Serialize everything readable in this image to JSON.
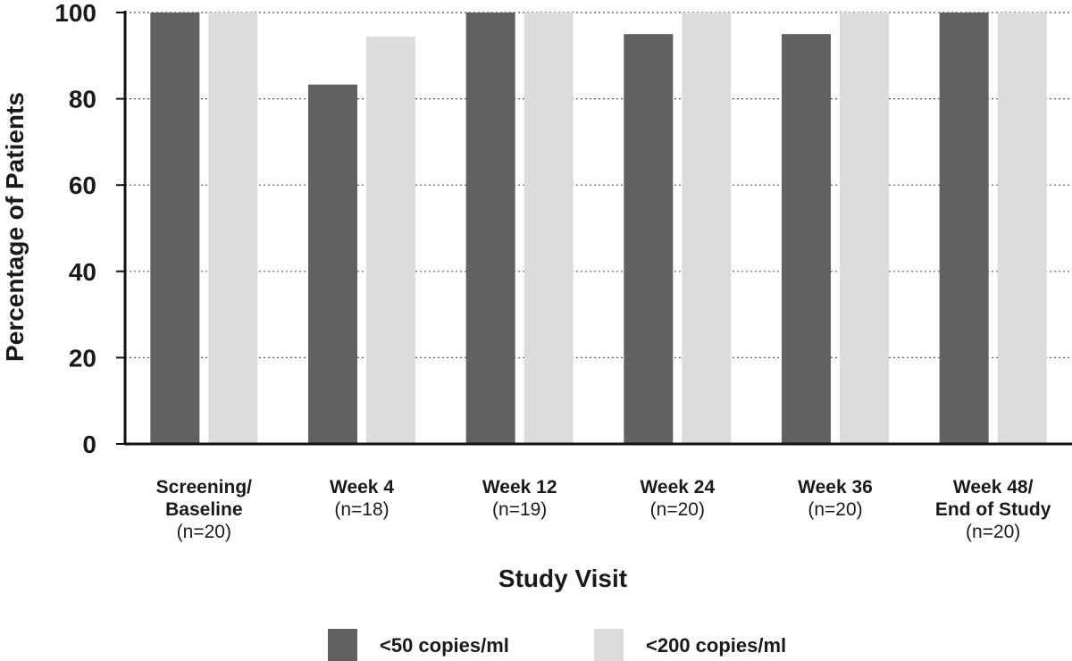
{
  "chart_data": {
    "type": "bar",
    "title": "",
    "xlabel": "Study Visit",
    "ylabel": "Percentage of Patients",
    "ylim": [
      0,
      100
    ],
    "yticks": [
      0,
      20,
      40,
      60,
      80,
      100
    ],
    "grid": "horizontal dotted",
    "legend_position": "bottom",
    "categories": [
      {
        "lines": [
          "Screening/",
          "Baseline"
        ],
        "n": "(n=20)"
      },
      {
        "lines": [
          "Week 4"
        ],
        "n": "(n=18)"
      },
      {
        "lines": [
          "Week 12"
        ],
        "n": "(n=19)"
      },
      {
        "lines": [
          "Week 24"
        ],
        "n": "(n=20)"
      },
      {
        "lines": [
          "Week 36"
        ],
        "n": "(n=20)"
      },
      {
        "lines": [
          "Week 48/",
          "End of Study"
        ],
        "n": "(n=20)"
      }
    ],
    "series": [
      {
        "name": "<50 copies/ml",
        "color": "#616163",
        "values": [
          100,
          83.3,
          100,
          95,
          95,
          100
        ]
      },
      {
        "name": "<200 copies/ml",
        "color": "#dcdcde",
        "values": [
          100,
          94.4,
          100,
          100,
          100,
          100
        ]
      }
    ]
  }
}
